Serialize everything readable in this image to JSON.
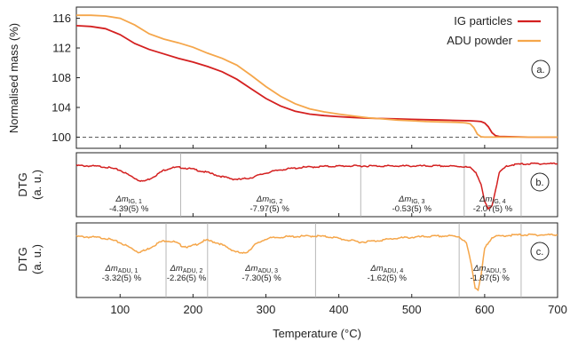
{
  "colors": {
    "ig": "#d42020",
    "adu": "#f5a64a",
    "axis": "#222222",
    "divider": "#b0b0b0",
    "dashed": "#444444"
  },
  "chart_data": [
    {
      "panel_label": "a.",
      "type": "line",
      "ylabel": "Normalised mass (%)",
      "ylim": [
        98.5,
        117.5
      ],
      "yticks": [
        "100",
        "104",
        "108",
        "112",
        "116"
      ],
      "xlim": [
        40,
        700
      ],
      "reference_line": 100,
      "legend_position": "top-right",
      "series": [
        {
          "name": "IG particles",
          "color_key": "ig",
          "x": [
            40,
            60,
            80,
            100,
            120,
            140,
            160,
            180,
            200,
            220,
            240,
            260,
            280,
            300,
            320,
            340,
            360,
            380,
            400,
            420,
            440,
            460,
            480,
            500,
            520,
            540,
            560,
            580,
            590,
            595,
            600,
            605,
            610,
            615,
            620,
            640,
            660,
            680,
            700
          ],
          "y": [
            115.0,
            114.9,
            114.6,
            113.8,
            112.6,
            111.8,
            111.2,
            110.6,
            110.1,
            109.5,
            108.8,
            107.8,
            106.5,
            105.2,
            104.2,
            103.5,
            103.1,
            102.9,
            102.75,
            102.65,
            102.55,
            102.5,
            102.45,
            102.4,
            102.35,
            102.3,
            102.25,
            102.2,
            102.15,
            102.1,
            101.9,
            101.4,
            100.6,
            100.2,
            100.1,
            100.05,
            100.0,
            100.0,
            100.0
          ]
        },
        {
          "name": "ADU powder",
          "color_key": "adu",
          "x": [
            40,
            60,
            80,
            100,
            120,
            140,
            160,
            180,
            200,
            220,
            240,
            260,
            280,
            300,
            320,
            340,
            360,
            380,
            400,
            420,
            440,
            460,
            480,
            500,
            520,
            540,
            560,
            570,
            575,
            580,
            585,
            590,
            595,
            600,
            620,
            640,
            660,
            680,
            700
          ],
          "y": [
            116.4,
            116.4,
            116.3,
            116.0,
            115.1,
            113.9,
            113.2,
            112.7,
            112.1,
            111.3,
            110.6,
            109.7,
            108.3,
            106.8,
            105.5,
            104.5,
            103.8,
            103.4,
            103.1,
            102.85,
            102.6,
            102.45,
            102.3,
            102.2,
            102.1,
            102.05,
            102.0,
            101.95,
            101.9,
            101.8,
            101.3,
            100.4,
            100.05,
            100.0,
            100.0,
            100.0,
            100.0,
            100.0,
            100.0
          ]
        }
      ]
    },
    {
      "panel_label": "b.",
      "type": "line",
      "ylabel_line1": "DTG",
      "ylabel_line2": "(a. u.)",
      "xlim": [
        40,
        700
      ],
      "ylim": [
        -1.1,
        0.12
      ],
      "dividers_x": [
        183,
        430,
        572,
        650
      ],
      "series": [
        {
          "name": "IG particles",
          "color_key": "ig",
          "x": [
            40,
            60,
            80,
            100,
            115,
            125,
            132,
            140,
            150,
            160,
            170,
            183,
            200,
            220,
            240,
            255,
            265,
            280,
            300,
            320,
            350,
            380,
            410,
            430,
            460,
            500,
            540,
            570,
            580,
            588,
            595,
            600,
            605,
            610,
            615,
            620,
            630,
            640,
            650,
            670,
            700
          ],
          "y": [
            -0.04,
            -0.05,
            -0.07,
            -0.14,
            -0.27,
            -0.35,
            -0.38,
            -0.33,
            -0.24,
            -0.14,
            -0.09,
            -0.08,
            -0.12,
            -0.19,
            -0.28,
            -0.33,
            -0.34,
            -0.3,
            -0.2,
            -0.13,
            -0.08,
            -0.06,
            -0.05,
            -0.05,
            -0.05,
            -0.05,
            -0.05,
            -0.06,
            -0.09,
            -0.18,
            -0.45,
            -0.82,
            -0.98,
            -0.9,
            -0.55,
            -0.2,
            -0.05,
            -0.02,
            -0.01,
            0.0,
            0.0
          ]
        }
      ],
      "annotations": [
        {
          "label": "Δm",
          "sub": "IG, 1",
          "value": "-4.39(5) %",
          "x": 112
        },
        {
          "label": "Δm",
          "sub": "IG, 2",
          "value": "-7.97(5) %",
          "x": 305
        },
        {
          "label": "Δm",
          "sub": "IG, 3",
          "value": "-0.53(5) %",
          "x": 500
        },
        {
          "label": "Δm",
          "sub": "IG, 4",
          "value": "-2.07(5) %",
          "x": 611
        }
      ]
    },
    {
      "panel_label": "c.",
      "type": "line",
      "ylabel_line1": "DTG",
      "ylabel_line2": "(a. u.)",
      "xlim": [
        40,
        700
      ],
      "ylim": [
        -1.1,
        0.12
      ],
      "dividers_x": [
        163,
        220,
        368,
        565,
        650
      ],
      "series": [
        {
          "name": "ADU powder",
          "color_key": "adu",
          "x": [
            40,
            60,
            80,
            100,
            115,
            125,
            135,
            145,
            155,
            163,
            175,
            185,
            195,
            205,
            215,
            220,
            235,
            250,
            260,
            268,
            275,
            285,
            300,
            320,
            340,
            368,
            390,
            410,
            430,
            450,
            480,
            520,
            550,
            565,
            575,
            582,
            587,
            591,
            595,
            600,
            610,
            630,
            650,
            680,
            700
          ],
          "y": [
            -0.03,
            -0.04,
            -0.06,
            -0.14,
            -0.24,
            -0.31,
            -0.28,
            -0.2,
            -0.13,
            -0.1,
            -0.13,
            -0.2,
            -0.22,
            -0.17,
            -0.11,
            -0.1,
            -0.15,
            -0.25,
            -0.31,
            -0.34,
            -0.3,
            -0.18,
            -0.07,
            -0.04,
            -0.03,
            -0.02,
            -0.04,
            -0.09,
            -0.13,
            -0.11,
            -0.06,
            -0.03,
            -0.02,
            -0.03,
            -0.15,
            -0.55,
            -0.95,
            -1.0,
            -0.75,
            -0.25,
            -0.04,
            -0.01,
            0.0,
            0.0,
            0.0
          ]
        }
      ],
      "annotations": [
        {
          "label": "Δm",
          "sub": "ADU, 1",
          "value": "-3.32(5) %",
          "x": 102
        },
        {
          "label": "Δm",
          "sub": "ADU, 2",
          "value": "-2.26(5) %",
          "x": 191
        },
        {
          "label": "Δm",
          "sub": "ADU, 3",
          "value": "-7.30(5) %",
          "x": 294
        },
        {
          "label": "Δm",
          "sub": "ADU, 4",
          "value": "-1.62(5) %",
          "x": 466
        },
        {
          "label": "Δm",
          "sub": "ADU, 5",
          "value": "-1.87(5) %",
          "x": 607
        }
      ]
    }
  ],
  "shared_x_axis": {
    "xlabel": "Temperature (°C)",
    "xlim": [
      40,
      700
    ],
    "ticks": [
      100,
      200,
      300,
      400,
      500,
      600,
      700
    ]
  }
}
